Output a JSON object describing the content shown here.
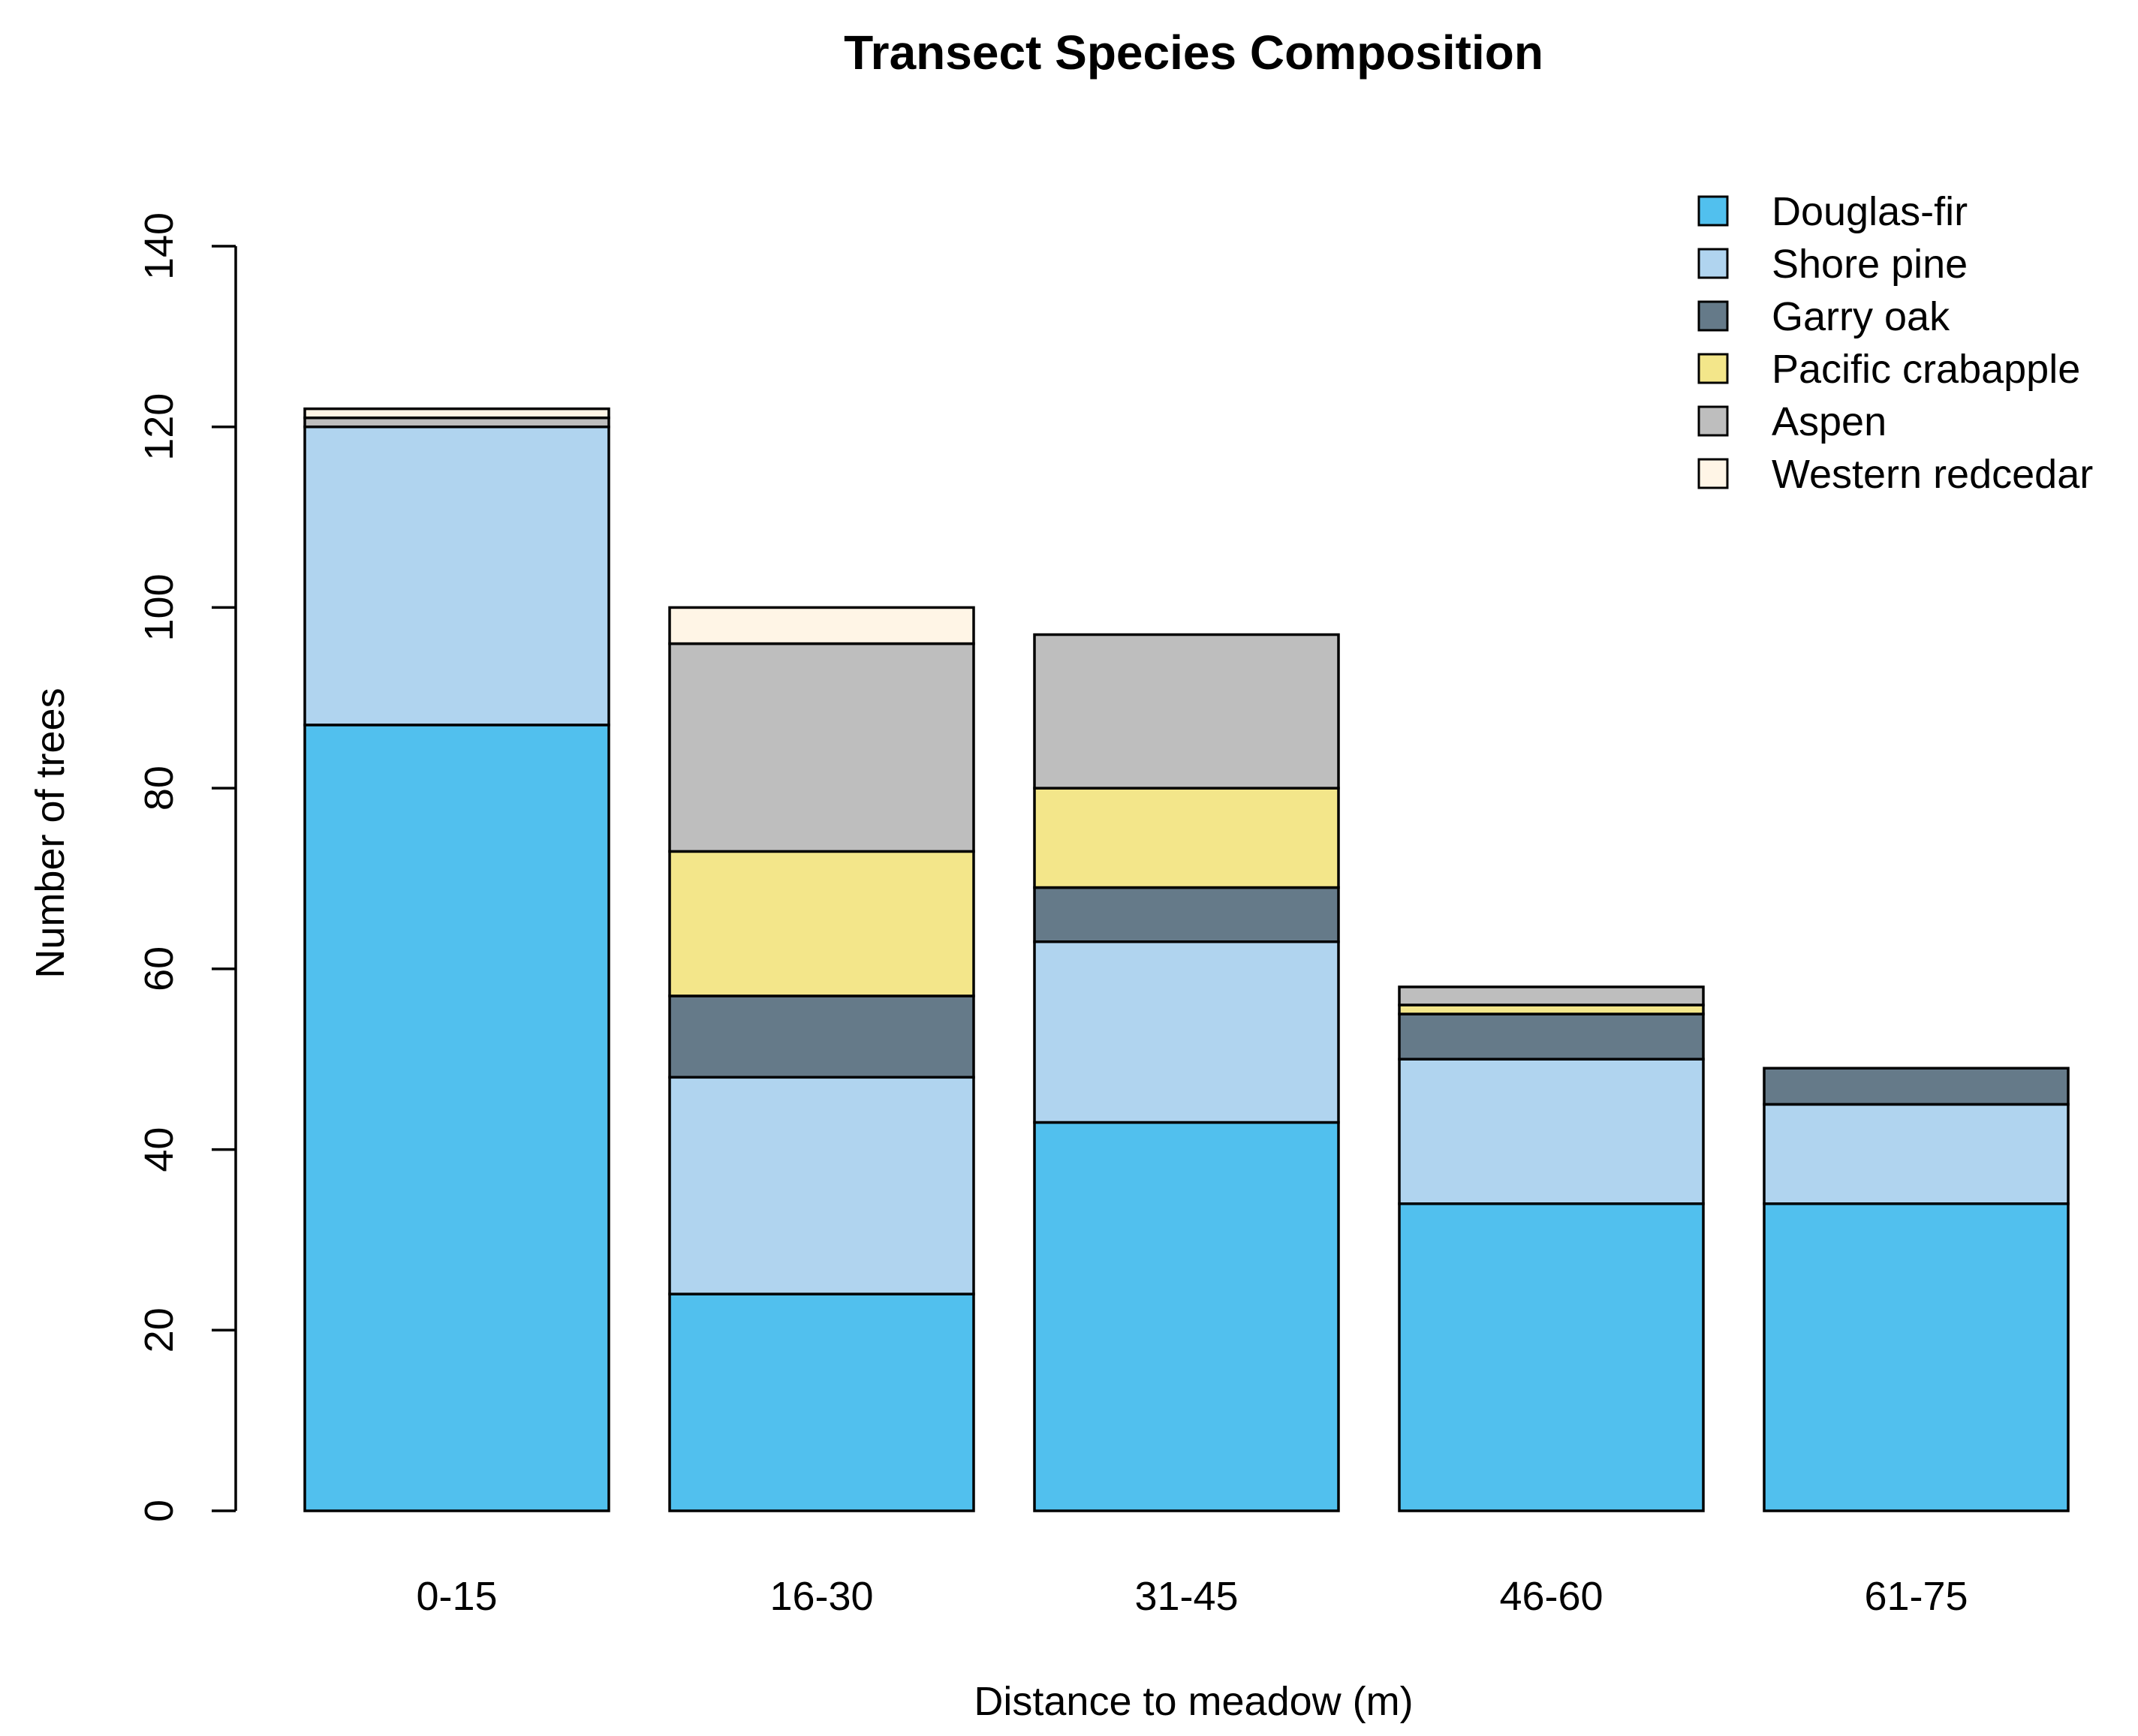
{
  "chart_data": {
    "type": "bar",
    "stacked": true,
    "title": "Transect Species Composition",
    "xlabel": "Distance to meadow (m)",
    "ylabel": "Number of trees",
    "ylim": [
      0,
      140
    ],
    "yticks": [
      "0",
      "20",
      "40",
      "60",
      "80",
      "100",
      "120",
      "140"
    ],
    "categories": [
      "0-15",
      "16-30",
      "31-45",
      "46-60",
      "61-75"
    ],
    "series": [
      {
        "name": "Douglas-fir",
        "color": "#51C0EE",
        "values": [
          87,
          24,
          43,
          34,
          34
        ]
      },
      {
        "name": "Shore pine",
        "color": "#B0D4EF",
        "values": [
          33,
          24,
          20,
          16,
          11
        ]
      },
      {
        "name": "Garry oak",
        "color": "#657A89",
        "values": [
          0,
          9,
          6,
          5,
          4
        ]
      },
      {
        "name": "Pacific crabapple",
        "color": "#F3E68A",
        "values": [
          0,
          16,
          11,
          1,
          0
        ]
      },
      {
        "name": "Aspen",
        "color": "#BEBEBE",
        "values": [
          1,
          23,
          17,
          2,
          0
        ]
      },
      {
        "name": "Western redcedar",
        "color": "#FFF5E6",
        "values": [
          1,
          4,
          0,
          0,
          0
        ]
      }
    ],
    "legend_position": "top-right",
    "grid": false
  }
}
